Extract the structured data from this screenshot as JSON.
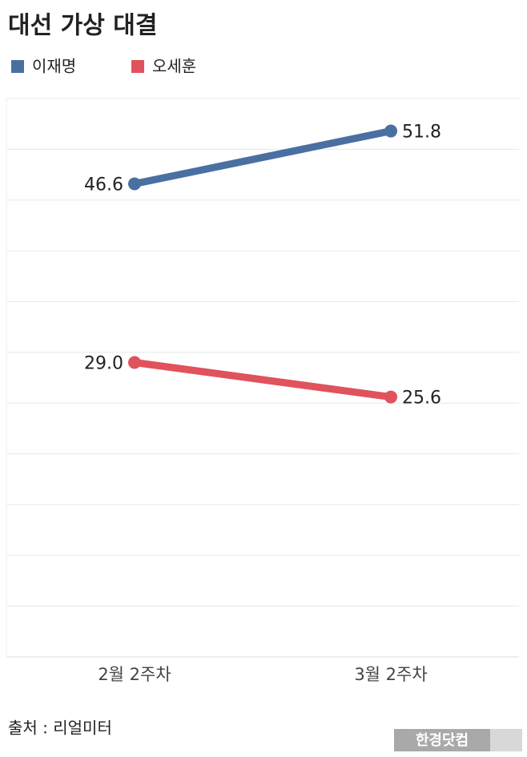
{
  "chart_data": {
    "type": "line",
    "title": "대선 가상 대결",
    "categories": [
      "2월 2주차",
      "3월 2주차"
    ],
    "series": [
      {
        "name": "이재명",
        "color": "#4a70a2",
        "values": [
          46.6,
          51.8
        ],
        "value_labels": [
          "46.6",
          "51.8"
        ]
      },
      {
        "name": "오세훈",
        "color": "#e0525c",
        "values": [
          29.0,
          25.6
        ],
        "value_labels": [
          "29.0",
          "25.6"
        ]
      }
    ],
    "ylim": [
      0,
      55
    ],
    "yticks": [
      0,
      5,
      10,
      15,
      20,
      25,
      30,
      35,
      40,
      45,
      50,
      55
    ],
    "grid": true,
    "tick_labels": false,
    "legend": "top-left",
    "source": "출처 : 리얼미터",
    "watermark": "한경닷컴"
  }
}
